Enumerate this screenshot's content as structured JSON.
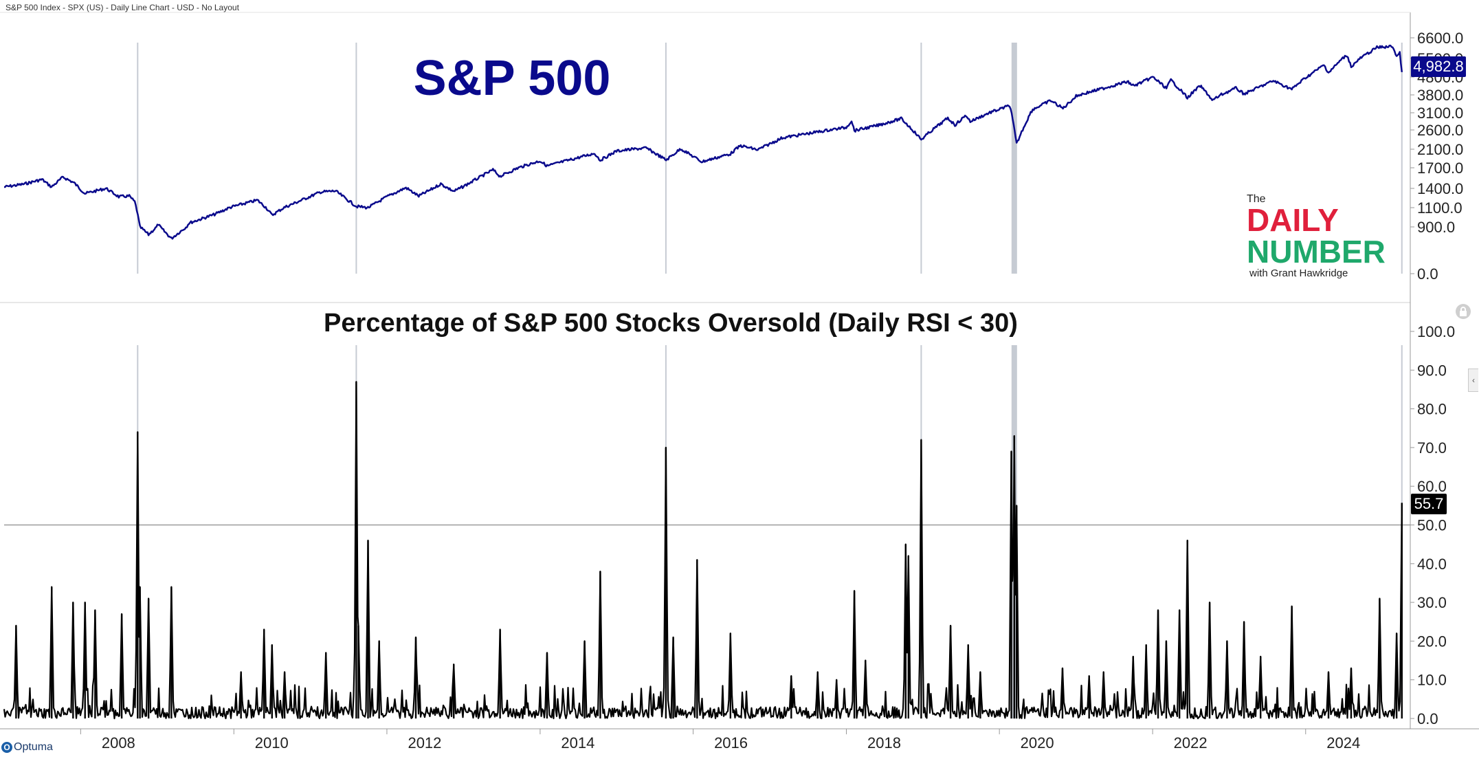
{
  "header": {
    "info": "S&P 500 Index - SPX (US) - Daily Line Chart - USD - No Layout"
  },
  "branding": {
    "optuma": "Optuma",
    "logo": {
      "the": "The",
      "daily": "DAILY",
      "number": "NUMBER",
      "byline": "with Grant Hawkridge"
    }
  },
  "colors": {
    "price_line": "#0a0a8c",
    "oversold_line": "#000000",
    "vline": "#b8bec8",
    "label_bg_price": "#0a0a8c",
    "label_bg_osc": "#000000",
    "logo_red": "#e0203c",
    "logo_green": "#1fa86b",
    "grid_axis": "#cccccc"
  },
  "chart_data": [
    {
      "type": "line",
      "title": "S&P 500",
      "series": [
        {
          "values": [
            [
              "2007-01-01",
              1420
            ],
            [
              "2007-04-01",
              1460
            ],
            [
              "2007-07-01",
              1530
            ],
            [
              "2007-08-15",
              1420
            ],
            [
              "2007-10-09",
              1565
            ],
            [
              "2007-12-01",
              1480
            ],
            [
              "2008-01-22",
              1320
            ],
            [
              "2008-05-01",
              1400
            ],
            [
              "2008-07-01",
              1270
            ],
            [
              "2008-08-20",
              1280
            ],
            [
              "2008-09-15",
              1190
            ],
            [
              "2008-10-10",
              900
            ],
            [
              "2008-11-20",
              752
            ],
            [
              "2009-01-06",
              930
            ],
            [
              "2009-03-09",
              677
            ],
            [
              "2009-06-01",
              940
            ],
            [
              "2009-10-01",
              1030
            ],
            [
              "2010-01-01",
              1120
            ],
            [
              "2010-04-23",
              1217
            ],
            [
              "2010-07-02",
              1022
            ],
            [
              "2010-11-01",
              1190
            ],
            [
              "2011-02-18",
              1343
            ],
            [
              "2011-05-01",
              1360
            ],
            [
              "2011-08-08",
              1120
            ],
            [
              "2011-10-03",
              1099
            ],
            [
              "2012-01-01",
              1270
            ],
            [
              "2012-04-01",
              1410
            ],
            [
              "2012-06-01",
              1280
            ],
            [
              "2012-09-14",
              1465
            ],
            [
              "2012-11-15",
              1355
            ],
            [
              "2013-01-01",
              1430
            ],
            [
              "2013-05-21",
              1670
            ],
            [
              "2013-06-24",
              1575
            ],
            [
              "2013-12-31",
              1848
            ],
            [
              "2014-02-03",
              1740
            ],
            [
              "2014-09-18",
              2011
            ],
            [
              "2014-10-15",
              1862
            ],
            [
              "2014-12-31",
              2060
            ],
            [
              "2015-05-21",
              2130
            ],
            [
              "2015-08-25",
              1867
            ],
            [
              "2015-11-03",
              2110
            ],
            [
              "2016-02-11",
              1829
            ],
            [
              "2016-06-27",
              2000
            ],
            [
              "2016-08-15",
              2190
            ],
            [
              "2016-11-04",
              2085
            ],
            [
              "2017-03-01",
              2395
            ],
            [
              "2017-12-31",
              2673
            ],
            [
              "2018-01-26",
              2872
            ],
            [
              "2018-02-08",
              2581
            ],
            [
              "2018-06-01",
              2734
            ],
            [
              "2018-09-20",
              2930
            ],
            [
              "2018-12-24",
              2351
            ],
            [
              "2019-04-30",
              2945
            ],
            [
              "2019-06-03",
              2744
            ],
            [
              "2019-07-26",
              3025
            ],
            [
              "2019-08-15",
              2847
            ],
            [
              "2019-12-31",
              3230
            ],
            [
              "2020-02-19",
              3386
            ],
            [
              "2020-03-23",
              2237
            ],
            [
              "2020-06-08",
              3232
            ],
            [
              "2020-09-02",
              3580
            ],
            [
              "2020-10-30",
              3270
            ],
            [
              "2021-01-01",
              3750
            ],
            [
              "2021-09-02",
              4537
            ],
            [
              "2021-10-04",
              4300
            ],
            [
              "2022-01-03",
              4796
            ],
            [
              "2022-03-08",
              4170
            ],
            [
              "2022-03-29",
              4631
            ],
            [
              "2022-06-16",
              3666
            ],
            [
              "2022-08-16",
              4305
            ],
            [
              "2022-10-12",
              3577
            ],
            [
              "2023-02-02",
              4179
            ],
            [
              "2023-03-13",
              3855
            ],
            [
              "2023-07-31",
              4589
            ],
            [
              "2023-10-27",
              4117
            ],
            [
              "2024-01-01",
              4770
            ],
            [
              "2024-03-28",
              5254
            ],
            [
              "2024-04-19",
              4967
            ],
            [
              "2024-07-16",
              5667
            ],
            [
              "2024-08-05",
              5186
            ],
            [
              "2024-12-06",
              6090
            ],
            [
              "2025-01-24",
              6118
            ],
            [
              "2025-02-19",
              6144
            ],
            [
              "2025-03-10",
              5614
            ],
            [
              "2025-03-25",
              5776
            ],
            [
              "2025-04-04",
              4982.8
            ]
          ]
        }
      ],
      "yticks": [
        "6600.0",
        "5500.0",
        "4800.0",
        "3800.0",
        "3100.0",
        "2600.0",
        "2100.0",
        "1700.0",
        "1400.0",
        "1100.0",
        "900.0",
        "0.0"
      ],
      "last_value": "4,982.8"
    },
    {
      "type": "line",
      "title": "Percentage of S&P 500 Stocks Oversold (Daily RSI < 30)",
      "ylim": [
        0,
        100
      ],
      "yticks": [
        "100.0",
        "90.0",
        "80.0",
        "70.0",
        "60.0",
        "50.0",
        "40.0",
        "30.0",
        "20.0",
        "10.0",
        "0.0"
      ],
      "reference_line": 50,
      "series": [
        {
          "values": [
            [
              "2007-02-27",
              24
            ],
            [
              "2007-08-16",
              34
            ],
            [
              "2007-11-26",
              30
            ],
            [
              "2008-01-22",
              30
            ],
            [
              "2008-03-10",
              28
            ],
            [
              "2008-07-15",
              27
            ],
            [
              "2008-09-29",
              74
            ],
            [
              "2008-10-10",
              34
            ],
            [
              "2008-11-20",
              31
            ],
            [
              "2009-03-09",
              34
            ],
            [
              "2010-02-04",
              12
            ],
            [
              "2010-05-25",
              23
            ],
            [
              "2010-07-02",
              19
            ],
            [
              "2010-08-31",
              12
            ],
            [
              "2011-03-16",
              17
            ],
            [
              "2011-08-08",
              87
            ],
            [
              "2011-08-18",
              24
            ],
            [
              "2011-10-03",
              46
            ],
            [
              "2011-11-25",
              20
            ],
            [
              "2012-05-18",
              21
            ],
            [
              "2012-11-15",
              14
            ],
            [
              "2013-06-24",
              23
            ],
            [
              "2014-02-03",
              17
            ],
            [
              "2014-08-01",
              20
            ],
            [
              "2014-10-15",
              38
            ],
            [
              "2015-08-24",
              70
            ],
            [
              "2015-09-28",
              21
            ],
            [
              "2016-01-20",
              41
            ],
            [
              "2016-06-27",
              22
            ],
            [
              "2017-04-13",
              11
            ],
            [
              "2017-08-17",
              12
            ],
            [
              "2017-11-15",
              10
            ],
            [
              "2018-02-08",
              33
            ],
            [
              "2018-04-02",
              15
            ],
            [
              "2018-10-11",
              45
            ],
            [
              "2018-10-24",
              42
            ],
            [
              "2018-12-24",
              72
            ],
            [
              "2019-05-13",
              24
            ],
            [
              "2019-08-05",
              19
            ],
            [
              "2019-10-02",
              12
            ],
            [
              "2020-02-27",
              69
            ],
            [
              "2020-03-12",
              73
            ],
            [
              "2020-03-23",
              55
            ],
            [
              "2020-10-28",
              13
            ],
            [
              "2021-03-04",
              11
            ],
            [
              "2021-05-12",
              12
            ],
            [
              "2021-09-30",
              16
            ],
            [
              "2021-12-01",
              19
            ],
            [
              "2022-01-27",
              28
            ],
            [
              "2022-03-07",
              20
            ],
            [
              "2022-05-09",
              28
            ],
            [
              "2022-06-16",
              46
            ],
            [
              "2022-09-30",
              30
            ],
            [
              "2022-12-22",
              20
            ],
            [
              "2023-03-13",
              25
            ],
            [
              "2023-05-31",
              16
            ],
            [
              "2023-10-27",
              29
            ],
            [
              "2024-04-19",
              12
            ],
            [
              "2024-08-05",
              13
            ],
            [
              "2024-12-19",
              31
            ],
            [
              "2025-03-10",
              22
            ],
            [
              "2025-04-04",
              55.7
            ]
          ]
        }
      ],
      "last_value": "55.7"
    }
  ],
  "x_axis": {
    "labels": [
      "2008",
      "2010",
      "2012",
      "2014",
      "2016",
      "2018",
      "2020",
      "2022",
      "2024"
    ]
  }
}
